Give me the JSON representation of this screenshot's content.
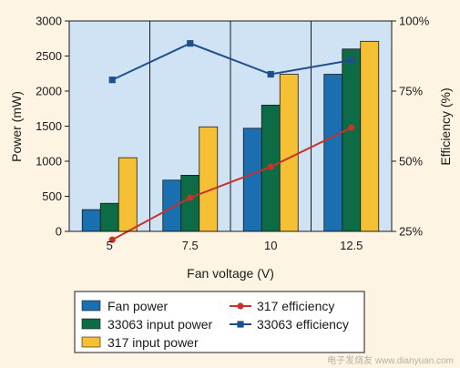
{
  "chart_data": {
    "type": "bar",
    "categories": [
      "5",
      "7.5",
      "10",
      "12.5"
    ],
    "xlabel": "Fan voltage (V)",
    "ylabel": "Power (mW)",
    "y2label": "Efficiency (%)",
    "ylim": [
      0,
      3000
    ],
    "yticks": [
      0,
      500,
      1000,
      1500,
      2000,
      2500,
      3000
    ],
    "y2lim": [
      25,
      100
    ],
    "y2ticks": [
      "25%",
      "50%",
      "75%",
      "100%"
    ],
    "grid": "vertical",
    "legend_position": "bottom",
    "series": [
      {
        "name": "Fan power",
        "kind": "bar",
        "axis": "left",
        "color": "#1a6fb0",
        "values": [
          310,
          730,
          1470,
          2240
        ]
      },
      {
        "name": "33063 input power",
        "kind": "bar",
        "axis": "left",
        "color": "#0d6b45",
        "values": [
          400,
          800,
          1800,
          2600
        ]
      },
      {
        "name": "317 input power",
        "kind": "bar",
        "axis": "left",
        "color": "#f5c033",
        "values": [
          1050,
          1490,
          2240,
          2710
        ]
      },
      {
        "name": "317 efficiency",
        "kind": "line",
        "axis": "right",
        "color": "#c8322b",
        "marker": "circle",
        "values": [
          22,
          37,
          48,
          62
        ]
      },
      {
        "name": "33063 efficiency",
        "kind": "line",
        "axis": "right",
        "color": "#1f4e8c",
        "marker": "square",
        "values": [
          79,
          92,
          81,
          86
        ]
      }
    ],
    "legend_order": [
      "Fan power",
      "317 efficiency",
      "33063 input power",
      "33063 efficiency",
      "317 input power"
    ]
  },
  "watermark": "电子发烧友 www.dianyuan.com"
}
